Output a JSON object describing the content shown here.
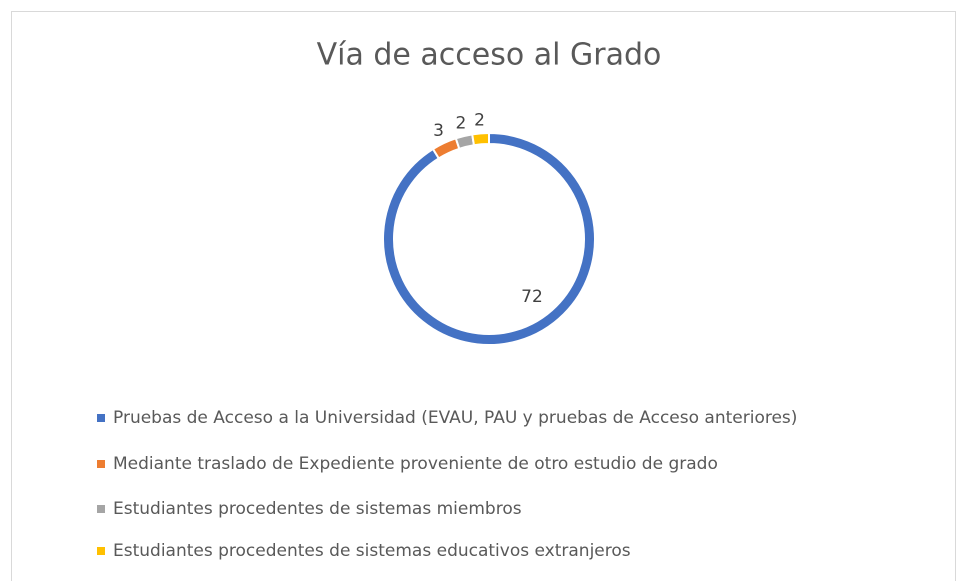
{
  "chart_data": {
    "type": "doughnut",
    "title": "Vía de acceso al Grado",
    "categories": [
      "Pruebas de Acceso a la Universidad (EVAU, PAU y pruebas de Acceso anteriores)",
      "Mediante traslado de Expediente proveniente de otro estudio de grado",
      "Estudiantes procedentes de sistemas miembros",
      "Estudiantes procedentes de sistemas educativos extranjeros"
    ],
    "values": [
      72,
      3,
      2,
      2
    ],
    "colors": [
      "#4472c4",
      "#ed7d31",
      "#a5a5a5",
      "#ffc000"
    ],
    "legend": "bottom"
  }
}
